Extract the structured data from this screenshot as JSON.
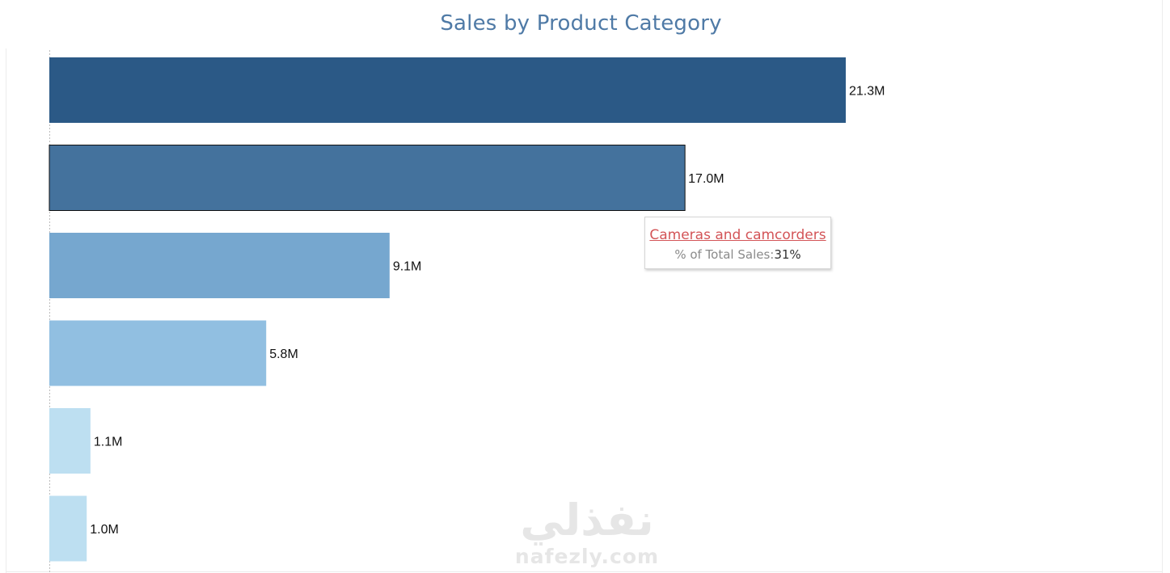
{
  "chart_data": {
    "type": "bar",
    "orientation": "horizontal",
    "title": "Sales by Product Category",
    "xlabel": "",
    "ylabel": "",
    "xlim": [
      0,
      21.3
    ],
    "grid": false,
    "legend": "none",
    "values": [
      21.3,
      17.0,
      9.1,
      5.8,
      1.1,
      1.0
    ],
    "value_labels": [
      "21.3M",
      "17.0M",
      "9.1M",
      "5.8M",
      "1.1M",
      "1.0M"
    ],
    "bar_colors": [
      "#2b5986",
      "#44729d",
      "#76a7cf",
      "#91bfe1",
      "#bddff1",
      "#bddff1"
    ],
    "highlighted_index": 1
  },
  "tooltip": {
    "category": "Cameras and camcorders",
    "label": "% of Total Sales:",
    "value": "31%"
  },
  "watermark": {
    "arabic": "نفذلي",
    "latin": "nafezly.com"
  }
}
